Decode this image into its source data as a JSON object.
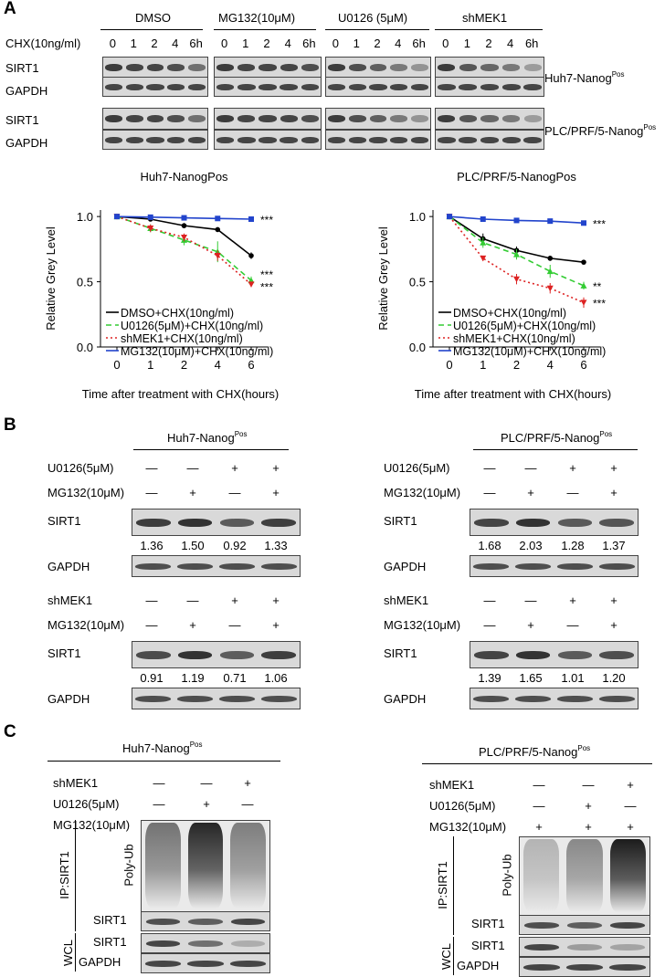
{
  "panel_letters": {
    "a": "A",
    "b": "B",
    "c": "C"
  },
  "panel_a": {
    "treatments": [
      "DMSO",
      "MG132(10μM)",
      "U0126 (5μM)",
      "shMEK1"
    ],
    "chx_label": "CHX(10ng/ml)",
    "timepoints": [
      "0",
      "1",
      "2",
      "4",
      "6h"
    ],
    "row_labels": [
      "SIRT1",
      "GAPDH",
      "SIRT1",
      "GAPDH"
    ],
    "cell_line_1": "Huh7-Nanog",
    "cell_line_2": "PLC/PRF/5-Nanog",
    "sup": "Pos"
  },
  "chart_data": [
    {
      "type": "line",
      "title": "Huh7-NanogPos",
      "xlabel": "Time after treatment with CHX(hours)",
      "ylabel": "Relative Grey Level",
      "x": [
        0,
        1,
        2,
        4,
        6
      ],
      "xtick_labels": [
        "0",
        "1",
        "2",
        "4",
        "6"
      ],
      "ytick_labels": [
        "0.0",
        "0.5",
        "1.0"
      ],
      "ylim": [
        0,
        1.05
      ],
      "series": [
        {
          "name": "DMSO+CHX(10ng/ml)",
          "color": "#000000",
          "dash": "",
          "marker": "circle",
          "values": [
            1.0,
            0.98,
            0.93,
            0.9,
            0.7
          ],
          "errors": [
            0,
            0.01,
            0.02,
            0.015,
            0.025
          ],
          "sig": ""
        },
        {
          "name": "U0126(5μM)+CHX(10ng/ml)",
          "color": "#33cc33",
          "dash": "6,4",
          "marker": "triangle",
          "values": [
            1.0,
            0.91,
            0.82,
            0.73,
            0.51
          ],
          "errors": [
            0,
            0.03,
            0.04,
            0.08,
            0.03
          ],
          "sig": "***"
        },
        {
          "name": "shMEK1+CHX(10ng/ml)",
          "color": "#dd2222",
          "dash": "2,3",
          "marker": "triangle-down",
          "values": [
            1.0,
            0.91,
            0.84,
            0.7,
            0.48
          ],
          "errors": [
            0,
            0.03,
            0.03,
            0.04,
            0.02
          ],
          "sig": "***"
        },
        {
          "name": "MG132(10μM)+CHX(10ng/ml)",
          "color": "#2244cc",
          "dash": "",
          "marker": "square",
          "values": [
            1.0,
            0.995,
            0.99,
            0.985,
            0.98
          ],
          "errors": [
            0,
            0.005,
            0.005,
            0.005,
            0.005
          ],
          "sig": "***"
        }
      ]
    },
    {
      "type": "line",
      "title": "PLC/PRF/5-NanogPos",
      "xlabel": "Time after treatment with CHX(hours)",
      "ylabel": "Relative Grey Level",
      "x": [
        0,
        1,
        2,
        4,
        6
      ],
      "xtick_labels": [
        "0",
        "1",
        "2",
        "4",
        "6"
      ],
      "ytick_labels": [
        "0.0",
        "0.5",
        "1.0"
      ],
      "ylim": [
        0,
        1.05
      ],
      "series": [
        {
          "name": "DMSO+CHX(10ng/ml)",
          "color": "#000000",
          "dash": "",
          "marker": "circle",
          "values": [
            1.0,
            0.83,
            0.74,
            0.68,
            0.65
          ],
          "errors": [
            0,
            0.04,
            0.03,
            0.02,
            0.01
          ],
          "sig": ""
        },
        {
          "name": "U0126(5μM)+CHX(10ng/ml)",
          "color": "#33cc33",
          "dash": "6,4",
          "marker": "triangle",
          "values": [
            1.0,
            0.8,
            0.71,
            0.58,
            0.47
          ],
          "errors": [
            0,
            0.04,
            0.04,
            0.05,
            0.03
          ],
          "sig": "**"
        },
        {
          "name": "shMEK1+CHX(10ng/ml)",
          "color": "#dd2222",
          "dash": "2,3",
          "marker": "triangle-down",
          "values": [
            1.0,
            0.68,
            0.52,
            0.45,
            0.34
          ],
          "errors": [
            0,
            0.02,
            0.04,
            0.04,
            0.04
          ],
          "sig": "***"
        },
        {
          "name": "MG132(10μM)+CHX(10ng/ml)",
          "color": "#2244cc",
          "dash": "",
          "marker": "square",
          "values": [
            1.0,
            0.98,
            0.97,
            0.965,
            0.95
          ],
          "errors": [
            0,
            0.005,
            0.005,
            0.005,
            0.01
          ],
          "sig": "***"
        }
      ]
    }
  ],
  "panel_b": {
    "cell_1": "Huh7-Nanog",
    "cell_2": "PLC/PRF/5-Nanog",
    "u0126_label": "U0126(5μM)",
    "mg132_label": "MG132(10μM)",
    "shmek1_label": "shMEK1",
    "sirt1": "SIRT1",
    "gapdh": "GAPDH",
    "pattern_a": [
      "—",
      "—",
      "+",
      "+"
    ],
    "pattern_b": [
      "—",
      "+",
      "—",
      "+"
    ],
    "values_huh7_top": [
      "1.36",
      "1.50",
      "0.92",
      "1.33"
    ],
    "values_plc_top": [
      "1.68",
      "2.03",
      "1.28",
      "1.37"
    ],
    "values_huh7_bottom": [
      "0.91",
      "1.19",
      "0.71",
      "1.06"
    ],
    "values_plc_bottom": [
      "1.39",
      "1.65",
      "1.01",
      "1.20"
    ]
  },
  "panel_c": {
    "cell_1": "Huh7-Nanog",
    "cell_2": "PLC/PRF/5-Nanog",
    "shmek1_label": "shMEK1",
    "u0126_label": "U0126(5μM)",
    "mg132_label": "MG132(10μM)",
    "shmek1_pattern": [
      "—",
      "—",
      "+"
    ],
    "u0126_pattern": [
      "—",
      "+",
      "—"
    ],
    "mg132_pattern": [
      "+",
      "+",
      "+"
    ],
    "ip_label": "IP:SIRT1",
    "wcl_label": "WCL",
    "polyub": "Poly-Ub",
    "sirt1": "SIRT1",
    "gapdh": "GAPDH"
  }
}
